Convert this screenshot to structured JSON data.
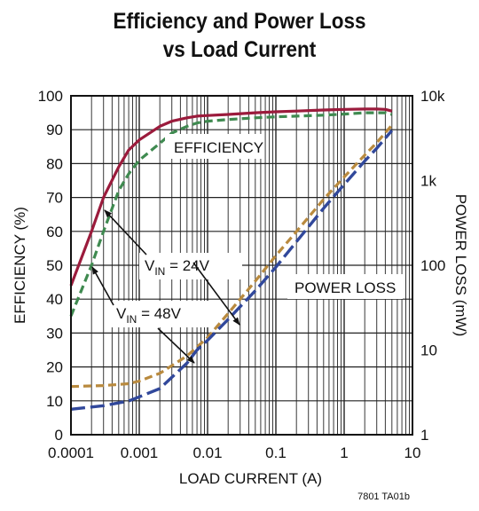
{
  "chart_data": {
    "type": "line",
    "title": [
      "Efficiency and Power Loss",
      "vs Load Current"
    ],
    "xlabel": "LOAD CURRENT (A)",
    "ylabel_left": "EFFICIENCY (%)",
    "ylabel_right": "POWER LOSS (mW)",
    "x_scale": "log",
    "xlim": [
      0.0001,
      10
    ],
    "ylim_left": [
      0,
      100
    ],
    "y_right_scale": "log",
    "ylim_right": [
      1,
      10000
    ],
    "x_ticks": [
      "0.0001",
      "0.001",
      "0.01",
      "0.1",
      "1",
      "10"
    ],
    "y_left_ticks": [
      "0",
      "10",
      "20",
      "30",
      "40",
      "50",
      "60",
      "70",
      "80",
      "90",
      "100"
    ],
    "y_right_ticks": [
      "1",
      "10",
      "100",
      "1k",
      "10k"
    ],
    "grid": true,
    "series": [
      {
        "axis": "left",
        "style": "solid",
        "color": "#9b1b3c",
        "x": [
          0.0001,
          0.0002,
          0.0003,
          0.0005,
          0.0007,
          0.001,
          0.002,
          0.003,
          0.005,
          0.007,
          0.01,
          0.02,
          0.05,
          0.1,
          0.2,
          0.5,
          1,
          2,
          3,
          4,
          5
        ],
        "y": [
          44,
          60,
          70,
          79,
          84,
          87,
          91,
          92.5,
          93.5,
          94,
          94.2,
          94.5,
          95,
          95.3,
          95.5,
          95.8,
          96,
          96.1,
          96.1,
          96,
          95.5
        ]
      },
      {
        "axis": "left",
        "style": "dashed",
        "color": "#3f8a50",
        "x": [
          0.0001,
          0.0002,
          0.0003,
          0.0005,
          0.0007,
          0.001,
          0.002,
          0.003,
          0.005,
          0.007,
          0.01,
          0.02,
          0.05,
          0.1,
          0.2,
          0.5,
          1,
          2,
          3,
          4,
          5
        ],
        "y": [
          35,
          50,
          60,
          72,
          77,
          81,
          86,
          89,
          91,
          92,
          92.5,
          93,
          93.5,
          93.8,
          94,
          94.3,
          94.6,
          95,
          95,
          95,
          94.5
        ]
      },
      {
        "axis": "right",
        "style": "dashed",
        "color": "#b98a3e",
        "x": [
          0.0001,
          0.0003,
          0.0007,
          0.001,
          0.002,
          0.005,
          0.01,
          0.02,
          0.05,
          0.1,
          0.2,
          0.5,
          1,
          2,
          3,
          5
        ],
        "y": [
          3.7,
          3.8,
          4.0,
          4.3,
          5.3,
          8.5,
          14,
          27,
          65,
          130,
          250,
          600,
          1100,
          2000,
          2800,
          4500
        ]
      },
      {
        "axis": "right",
        "style": "longdash",
        "color": "#31489b",
        "x": [
          0.0001,
          0.0003,
          0.0007,
          0.001,
          0.002,
          0.005,
          0.007,
          0.01,
          0.02,
          0.05,
          0.1,
          0.2,
          0.5,
          1,
          2,
          3,
          5
        ],
        "y": [
          2.0,
          2.2,
          2.5,
          2.8,
          3.5,
          7,
          10,
          13,
          23,
          50,
          95,
          190,
          470,
          900,
          1700,
          2400,
          3900
        ]
      }
    ],
    "annotations": [
      {
        "text": "EFFICIENCY"
      },
      {
        "text": "POWER LOSS"
      },
      {
        "text_main": "V",
        "text_sub": "IN",
        "text_rest": " = 24V"
      },
      {
        "text_main": "V",
        "text_sub": "IN",
        "text_rest": " = 48V"
      }
    ],
    "figure_id": "7801 TA01b"
  }
}
